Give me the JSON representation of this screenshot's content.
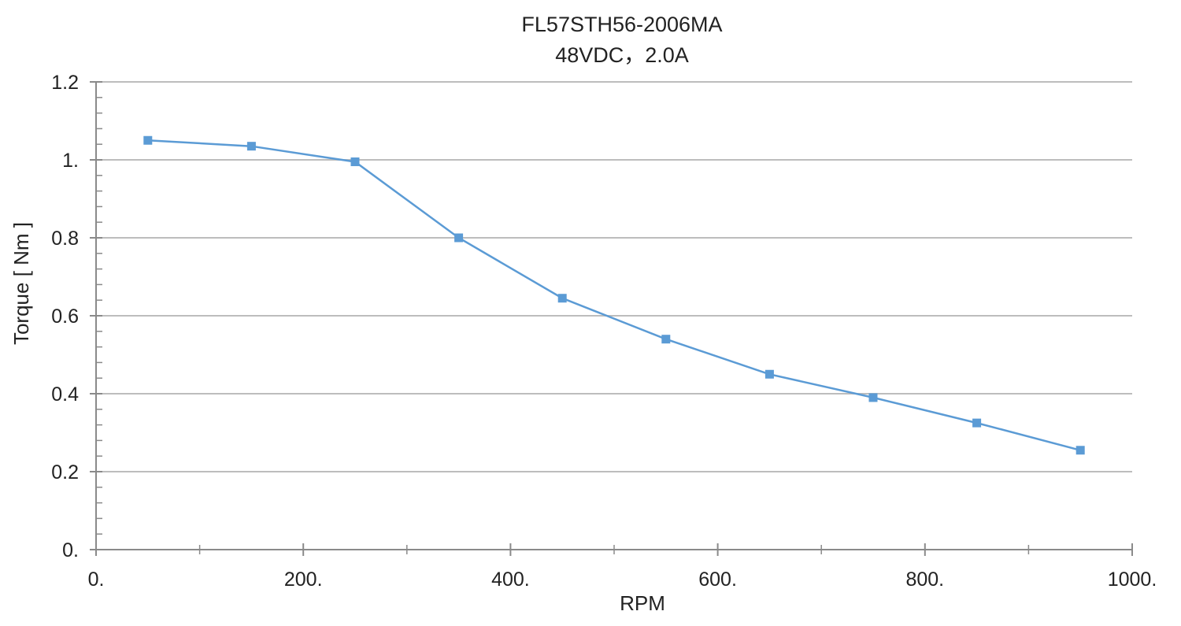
{
  "chart_data": {
    "type": "line",
    "title": "FL57STH56-2006MA",
    "subtitle": "48VDC，2.0A",
    "xlabel": "RPM",
    "ylabel": "Torque [ Nm ]",
    "xlim": [
      0,
      1000
    ],
    "ylim": [
      0,
      1.2
    ],
    "x_ticks": [
      0,
      200,
      400,
      600,
      800,
      1000
    ],
    "x_tick_labels": [
      "0.",
      "200.",
      "400.",
      "600.",
      "800.",
      "1000."
    ],
    "x_minor_ticks": [
      100,
      300,
      500,
      700,
      900
    ],
    "y_ticks": [
      0,
      0.2,
      0.4,
      0.6,
      0.8,
      1.0,
      1.2
    ],
    "y_tick_labels": [
      "0.",
      "0.2",
      "0.4",
      "0.6",
      "0.8",
      "1.",
      "1.2"
    ],
    "y_minor_step": 0.04,
    "grid": true,
    "legend": "none",
    "series": [
      {
        "color": "#5b9bd5",
        "marker": "square",
        "x": [
          50,
          150,
          250,
          350,
          450,
          550,
          650,
          750,
          850,
          950
        ],
        "y": [
          1.05,
          1.035,
          0.995,
          0.8,
          0.645,
          0.54,
          0.45,
          0.39,
          0.325,
          0.255
        ]
      }
    ]
  }
}
